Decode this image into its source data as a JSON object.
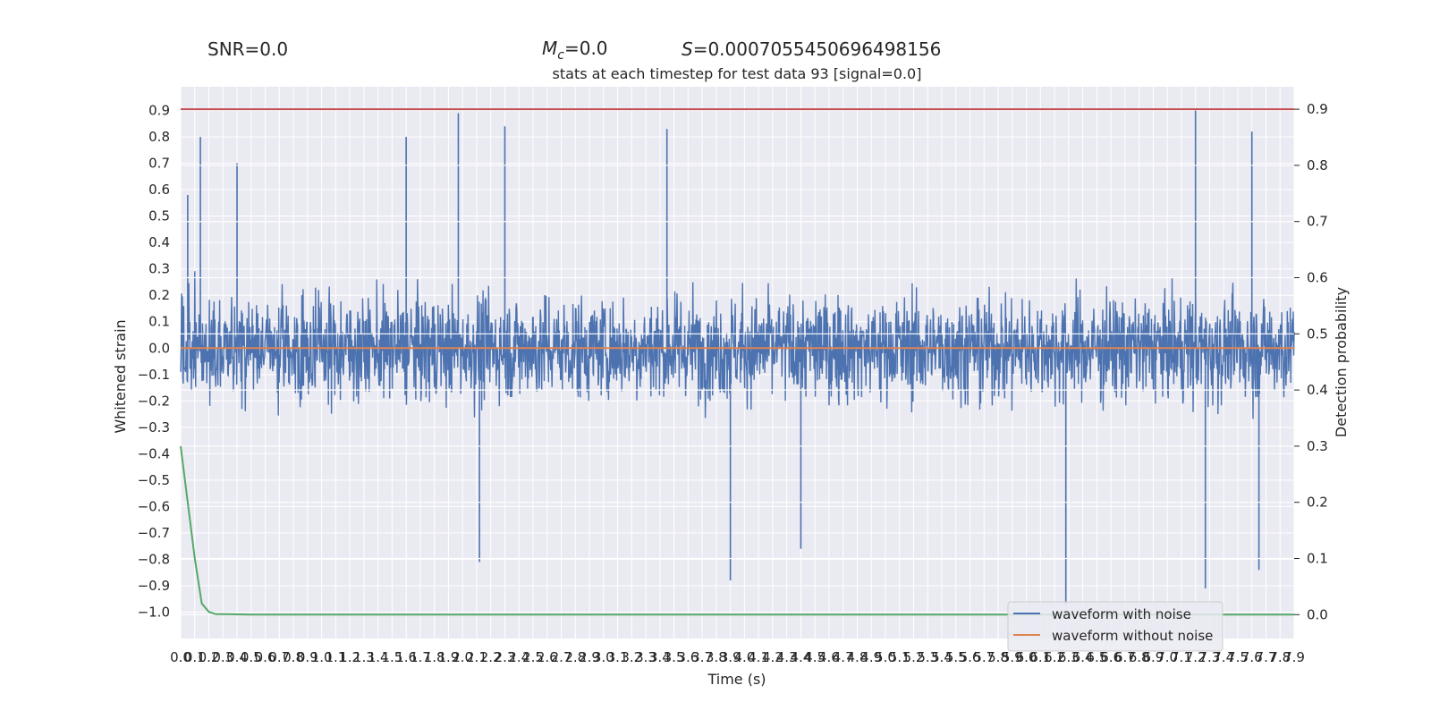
{
  "header": {
    "snr": "SNR=0.0",
    "mc": "=0.0",
    "mc_symbol": "M",
    "mc_sub": "c",
    "s_symbol": "S",
    "s": "=0.0007055450696498156"
  },
  "chart_data": {
    "type": "line",
    "title": "stats at each timestep for test data 93 [signal=0.0]",
    "xlabel": "Time (s)",
    "ylabel": "Whitened strain",
    "ylabel_right": "Detection probability",
    "xlim": [
      0,
      7.9
    ],
    "ylim": [
      -1.1,
      0.99
    ],
    "ylim_right": [
      -0.0425,
      0.94
    ],
    "x_ticks": [
      "0.0",
      "0.1",
      "0.2",
      "0.3",
      "0.4",
      "0.5",
      "0.6",
      "0.7",
      "0.8",
      "0.9",
      "1.0",
      "1.1",
      "1.2",
      "1.3",
      "1.4",
      "1.5",
      "1.6",
      "1.7",
      "1.8",
      "1.9",
      "2.0",
      "2.1",
      "2.2",
      "2.3",
      "2.4",
      "2.5",
      "2.6",
      "2.7",
      "2.8",
      "2.9",
      "3.0",
      "3.1",
      "3.2",
      "3.3",
      "3.4",
      "3.5",
      "3.6",
      "3.7",
      "3.8",
      "3.9",
      "4.0",
      "4.1",
      "4.2",
      "4.3",
      "4.4",
      "4.5",
      "4.6",
      "4.7",
      "4.8",
      "4.9",
      "5.0",
      "5.1",
      "5.2",
      "5.3",
      "5.4",
      "5.5",
      "5.6",
      "5.7",
      "5.8",
      "5.9",
      "6.0",
      "6.1",
      "6.2",
      "6.3",
      "6.4",
      "6.5",
      "6.6",
      "6.7",
      "6.8",
      "6.9",
      "7.0",
      "7.1",
      "7.2",
      "7.3",
      "7.4",
      "7.5",
      "7.6",
      "7.7",
      "7.8",
      "7.9"
    ],
    "y_ticks_left": [
      "0.9",
      "0.8",
      "0.7",
      "0.6",
      "0.5",
      "0.4",
      "0.3",
      "0.2",
      "0.1",
      "0.0",
      "−0.1",
      "−0.2",
      "−0.3",
      "−0.4",
      "−0.5",
      "−0.6",
      "−0.7",
      "−0.8",
      "−0.9",
      "−1.0"
    ],
    "y_ticks_left_values": [
      0.9,
      0.8,
      0.7,
      0.6,
      0.5,
      0.4,
      0.3,
      0.2,
      0.1,
      0.0,
      -0.1,
      -0.2,
      -0.3,
      -0.4,
      -0.5,
      -0.6,
      -0.7,
      -0.8,
      -0.9,
      -1.0
    ],
    "y_ticks_right": [
      "0.9",
      "0.8",
      "0.7",
      "0.6",
      "0.5",
      "0.4",
      "0.3",
      "0.2",
      "0.1",
      "0.0"
    ],
    "y_ticks_right_values": [
      0.9,
      0.8,
      0.7,
      0.6,
      0.5,
      0.4,
      0.3,
      0.2,
      0.1,
      0.0
    ],
    "threshold": {
      "value": 0.9,
      "axis": "right",
      "color": "#c44e52"
    },
    "series": [
      {
        "name": "waveform with noise",
        "axis": "left",
        "color": "#4c72b0",
        "noise_amplitude_approx": 0.3,
        "peak_envelope": [
          {
            "x": 0.05,
            "y": 0.58
          },
          {
            "x": 0.14,
            "y": 0.8
          },
          {
            "x": 0.4,
            "y": 0.7
          },
          {
            "x": 1.6,
            "y": 0.8
          },
          {
            "x": 1.97,
            "y": 0.89
          },
          {
            "x": 2.3,
            "y": 0.84
          },
          {
            "x": 3.45,
            "y": 0.83
          },
          {
            "x": 7.2,
            "y": 0.9
          },
          {
            "x": 7.6,
            "y": 0.82
          },
          {
            "x": 2.12,
            "y": -0.81
          },
          {
            "x": 3.9,
            "y": -0.88
          },
          {
            "x": 4.4,
            "y": -0.76
          },
          {
            "x": 6.28,
            "y": -0.97
          },
          {
            "x": 7.27,
            "y": -0.91
          },
          {
            "x": 7.65,
            "y": -0.84
          }
        ]
      },
      {
        "name": "waveform without noise",
        "axis": "left",
        "color": "#dd8452",
        "x": [
          0,
          7.9
        ],
        "y": [
          0.0,
          0.0
        ]
      },
      {
        "name": "",
        "axis": "right",
        "color": "#55a868",
        "x": [
          0.0,
          0.05,
          0.1,
          0.15,
          0.2,
          0.25,
          0.3,
          0.4,
          0.5,
          1.0,
          2.0,
          4.0,
          6.0,
          7.9
        ],
        "y": [
          0.3,
          0.2,
          0.1,
          0.02,
          0.005,
          0.001,
          0.001,
          0.0005,
          0.0002,
          0.0,
          0.0,
          0.0,
          0.0,
          0.0
        ]
      }
    ],
    "grid": true,
    "legend": "lower-right"
  }
}
